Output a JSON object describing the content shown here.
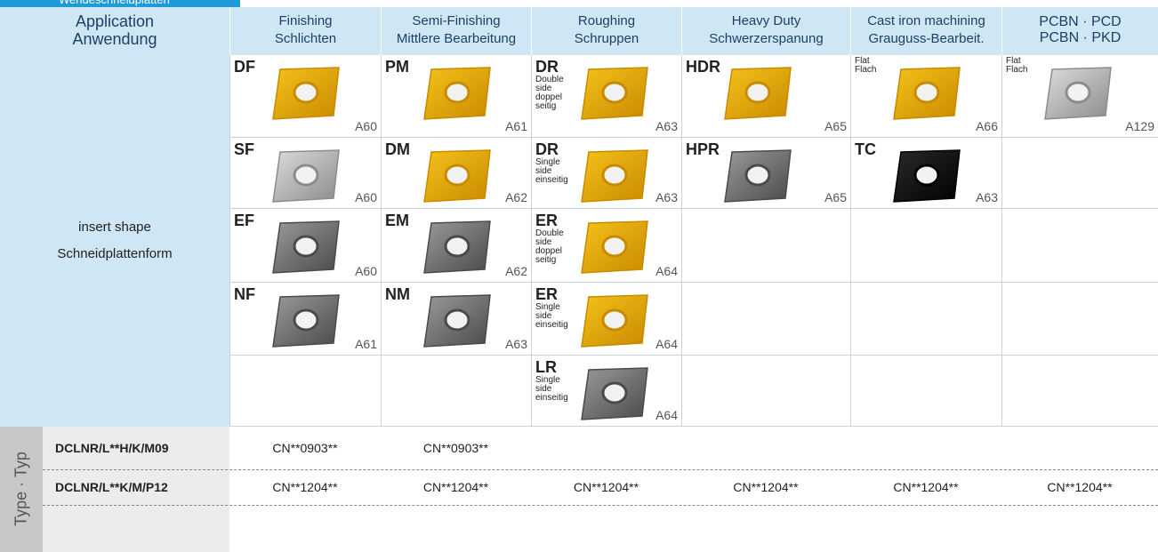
{
  "tab": "Wendeschneidplatten",
  "header": {
    "application": [
      "Application",
      "Anwendung"
    ],
    "columns": [
      [
        "Finishing",
        "Schlichten"
      ],
      [
        "Semi-Finishing",
        "Mittlere Bearbeitung"
      ],
      [
        "Roughing",
        "Schruppen"
      ],
      [
        "Heavy Duty",
        "Schwerzerspanung"
      ],
      [
        "Cast iron machining",
        "Grauguss-Bearbeit."
      ],
      [
        "PCBN · PCD",
        "PCBN · PKD"
      ]
    ]
  },
  "row_label": [
    "insert shape",
    "Schneidplattenform"
  ],
  "grid": [
    [
      {
        "code": "DF",
        "page": "A60"
      },
      {
        "code": "PM",
        "page": "A61"
      },
      {
        "code": "DR",
        "note": [
          "Double",
          "side",
          "doppel",
          "seitig"
        ],
        "page": "A63"
      },
      {
        "code": "HDR",
        "page": "A65"
      },
      {
        "note": [
          "Flat",
          "Flach"
        ],
        "page": "A66"
      },
      {
        "note": [
          "Flat",
          "Flach"
        ],
        "page": "A129"
      }
    ],
    [
      {
        "code": "SF",
        "page": "A60"
      },
      {
        "code": "DM",
        "page": "A62"
      },
      {
        "code": "DR",
        "note": [
          "Single",
          "side",
          "einseitig"
        ],
        "page": "A63"
      },
      {
        "code": "HPR",
        "page": "A65"
      },
      {
        "code": "TC",
        "page": "A63"
      },
      null
    ],
    [
      {
        "code": "EF",
        "page": "A60"
      },
      {
        "code": "EM",
        "page": "A62"
      },
      {
        "code": "ER",
        "note": [
          "Double",
          "side",
          "doppel",
          "seitig"
        ],
        "page": "A64"
      },
      null,
      null,
      null
    ],
    [
      {
        "code": "NF",
        "page": "A61"
      },
      {
        "code": "NM",
        "page": "A63"
      },
      {
        "code": "ER",
        "note": [
          "Single",
          "side",
          "einseitig"
        ],
        "page": "A64"
      },
      null,
      null,
      null
    ],
    [
      null,
      null,
      {
        "code": "LR",
        "note": [
          "Single",
          "side",
          "einseitig"
        ],
        "page": "A64"
      },
      null,
      null,
      null
    ]
  ],
  "type": {
    "label": "Type · Typ",
    "rows": [
      {
        "name": "DCLNR/L**H/K/M09",
        "values": [
          "CN**0903**",
          "CN**0903**",
          null,
          null,
          null,
          null
        ]
      },
      {
        "name": "DCLNR/L**K/M/P12",
        "values": [
          "CN**1204**",
          "CN**1204**",
          "CN**1204**",
          "CN**1204**",
          "CN**1204**",
          "CN**1204**"
        ]
      }
    ]
  }
}
